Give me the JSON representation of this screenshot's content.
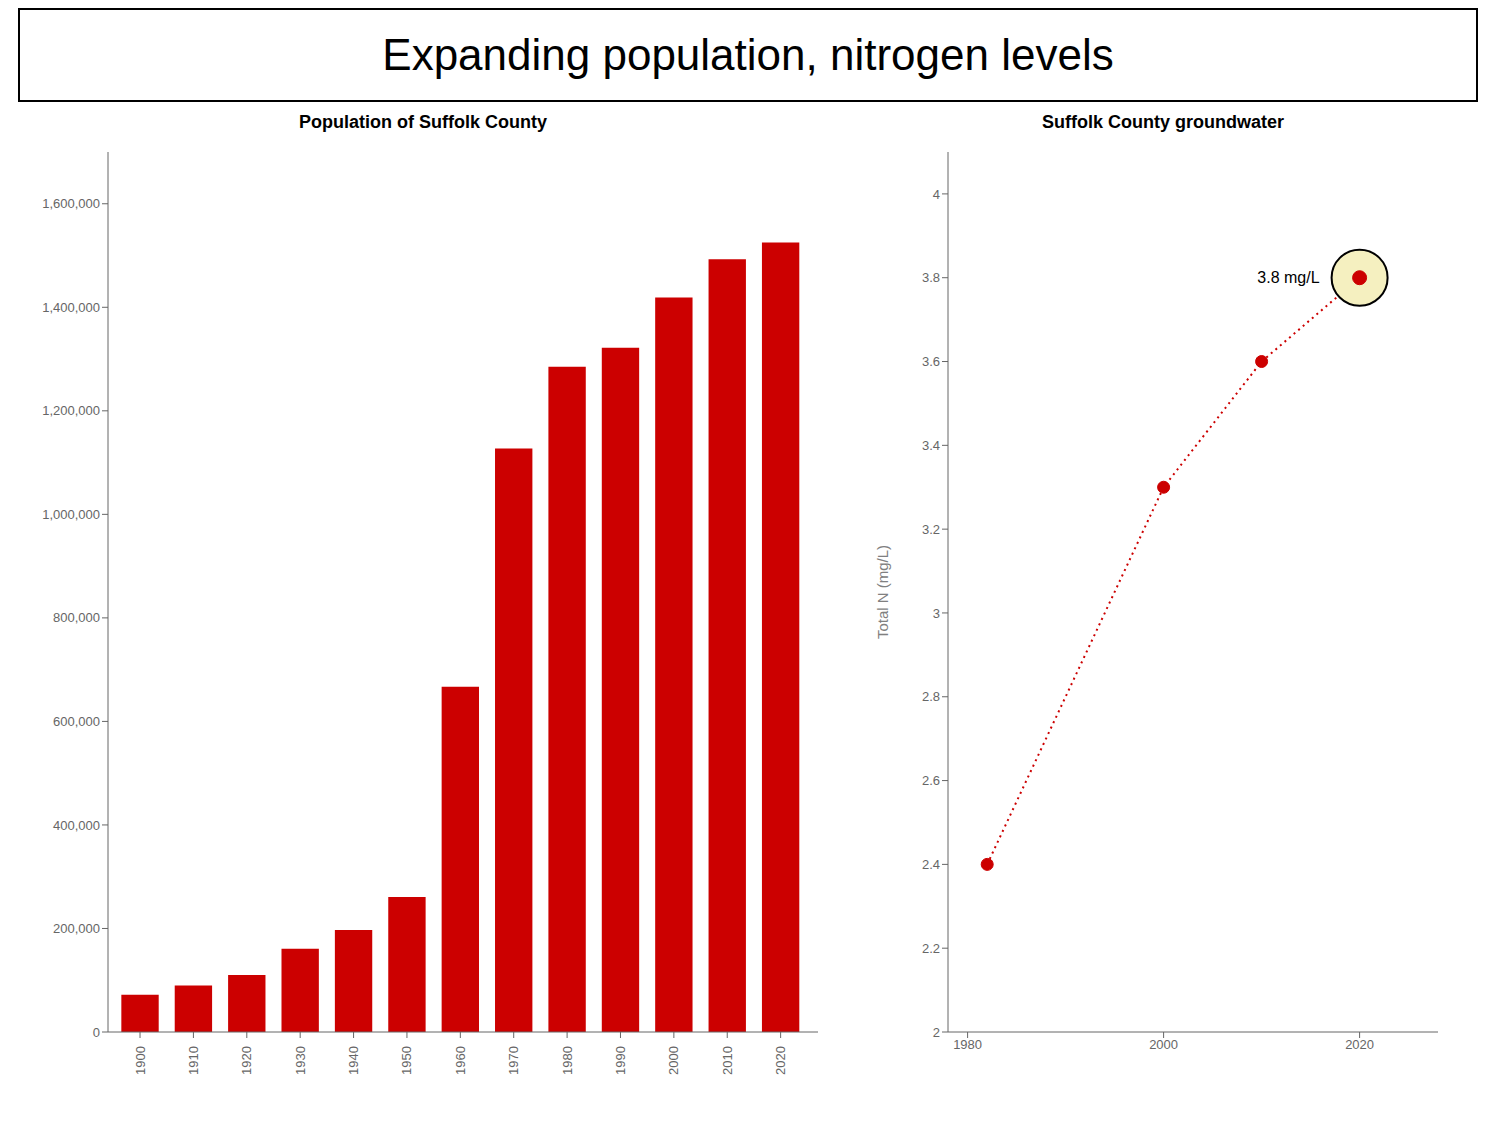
{
  "title": "Expanding population, nitrogen levels",
  "chart_data": [
    {
      "type": "bar",
      "title": "Population of Suffolk County",
      "x": [
        1900,
        1910,
        1920,
        1930,
        1940,
        1950,
        1960,
        1970,
        1980,
        1990,
        2000,
        2010,
        2020
      ],
      "values": [
        72000,
        90000,
        110000,
        161000,
        197000,
        261000,
        667000,
        1127000,
        1285000,
        1322000,
        1419000,
        1493000,
        1525000
      ],
      "color": "#cc0000",
      "xlim": [
        1894,
        2027
      ],
      "xticks": [
        1900,
        1910,
        1920,
        1930,
        1940,
        1950,
        1960,
        1970,
        1980,
        1990,
        2000,
        2010,
        2020
      ],
      "ylim": [
        0,
        1700000
      ],
      "yticks": [
        0,
        {
          "value": 200000,
          "label": "200,000"
        },
        {
          "value": 400000,
          "label": "400,000"
        },
        {
          "value": 600000,
          "label": "600,000"
        },
        {
          "value": 800000,
          "label": "800,000"
        },
        {
          "value": 1000000,
          "label": "1,000,000"
        },
        {
          "value": 1200000,
          "label": "1,200,000"
        },
        {
          "value": 1400000,
          "label": "1,400,000"
        },
        {
          "value": 1600000,
          "label": "1,600,000"
        }
      ],
      "grid": false
    },
    {
      "type": "scatter",
      "title": "Suffolk County groundwater",
      "y_label": "Total N (mg/L)",
      "x": [
        1982,
        2000,
        2010,
        2020
      ],
      "values": [
        2.4,
        3.3,
        3.6,
        3.8
      ],
      "color": "#cc0000",
      "marker": "circle",
      "line_style": "dotted",
      "xlim": [
        1978,
        2028
      ],
      "xticks": [
        1980,
        2000,
        2020
      ],
      "ylim": [
        2.0,
        4.1
      ],
      "yticks": [
        2.0,
        2.2,
        2.4,
        2.6,
        2.8,
        3.0,
        3.2,
        3.4,
        3.6,
        3.8,
        4.0
      ],
      "grid": false,
      "annotations": [
        {
          "text": "3.8 mg/L",
          "x": 2020,
          "y": 3.8
        }
      ]
    }
  ]
}
